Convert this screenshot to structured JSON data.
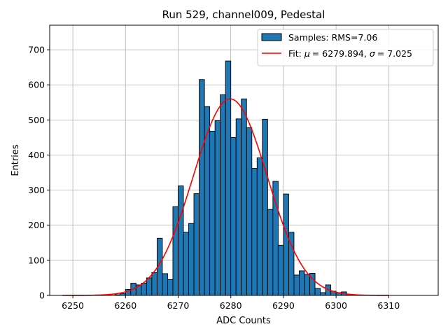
{
  "chart_data": {
    "type": "bar",
    "title": "Run 529, channel009, Pedestal",
    "xlabel": "ADC Counts",
    "ylabel": "Entries",
    "xlim": [
      6245.6,
      6319.4
    ],
    "ylim": [
      0,
      770
    ],
    "x_ticks": [
      6250,
      6260,
      6270,
      6280,
      6290,
      6300,
      6310
    ],
    "y_ticks": [
      0,
      100,
      200,
      300,
      400,
      500,
      600,
      700
    ],
    "grid": true,
    "legend_position": "top-right",
    "colors": {
      "bars": "#1f77b4",
      "bar_edge": "#000000",
      "fit": "#ff0000",
      "grid": "#b0b0b0"
    },
    "histogram": {
      "name": "Samples: RMS=7.06",
      "bin_width": 1,
      "bins_start": [
        6258,
        6259,
        6260,
        6261,
        6262,
        6263,
        6264,
        6265,
        6266,
        6267,
        6268,
        6269,
        6270,
        6271,
        6272,
        6273,
        6274,
        6275,
        6276,
        6277,
        6278,
        6279,
        6280,
        6281,
        6282,
        6283,
        6284,
        6285,
        6286,
        6287,
        6288,
        6289,
        6290,
        6291,
        6292,
        6293,
        6294,
        6295,
        6296,
        6297,
        6298,
        6299,
        6300,
        6301,
        6302
      ],
      "values": [
        2,
        5,
        17,
        35,
        30,
        35,
        50,
        65,
        163,
        62,
        45,
        253,
        312,
        180,
        205,
        290,
        615,
        538,
        468,
        498,
        572,
        668,
        450,
        503,
        560,
        478,
        362,
        392,
        502,
        245,
        325,
        143,
        289,
        180,
        58,
        70,
        60,
        63,
        20,
        8,
        30,
        12,
        8,
        10,
        2
      ]
    },
    "fit": {
      "name_prefix": "Fit: ",
      "mu_symbol": "μ",
      "mu_value": "= 6279.894, ",
      "sigma_symbol": "σ",
      "sigma_value": "= 7.025",
      "mu": 6279.894,
      "sigma": 7.025,
      "amplitude": 560,
      "x_range": [
        6248,
        6310
      ]
    }
  }
}
